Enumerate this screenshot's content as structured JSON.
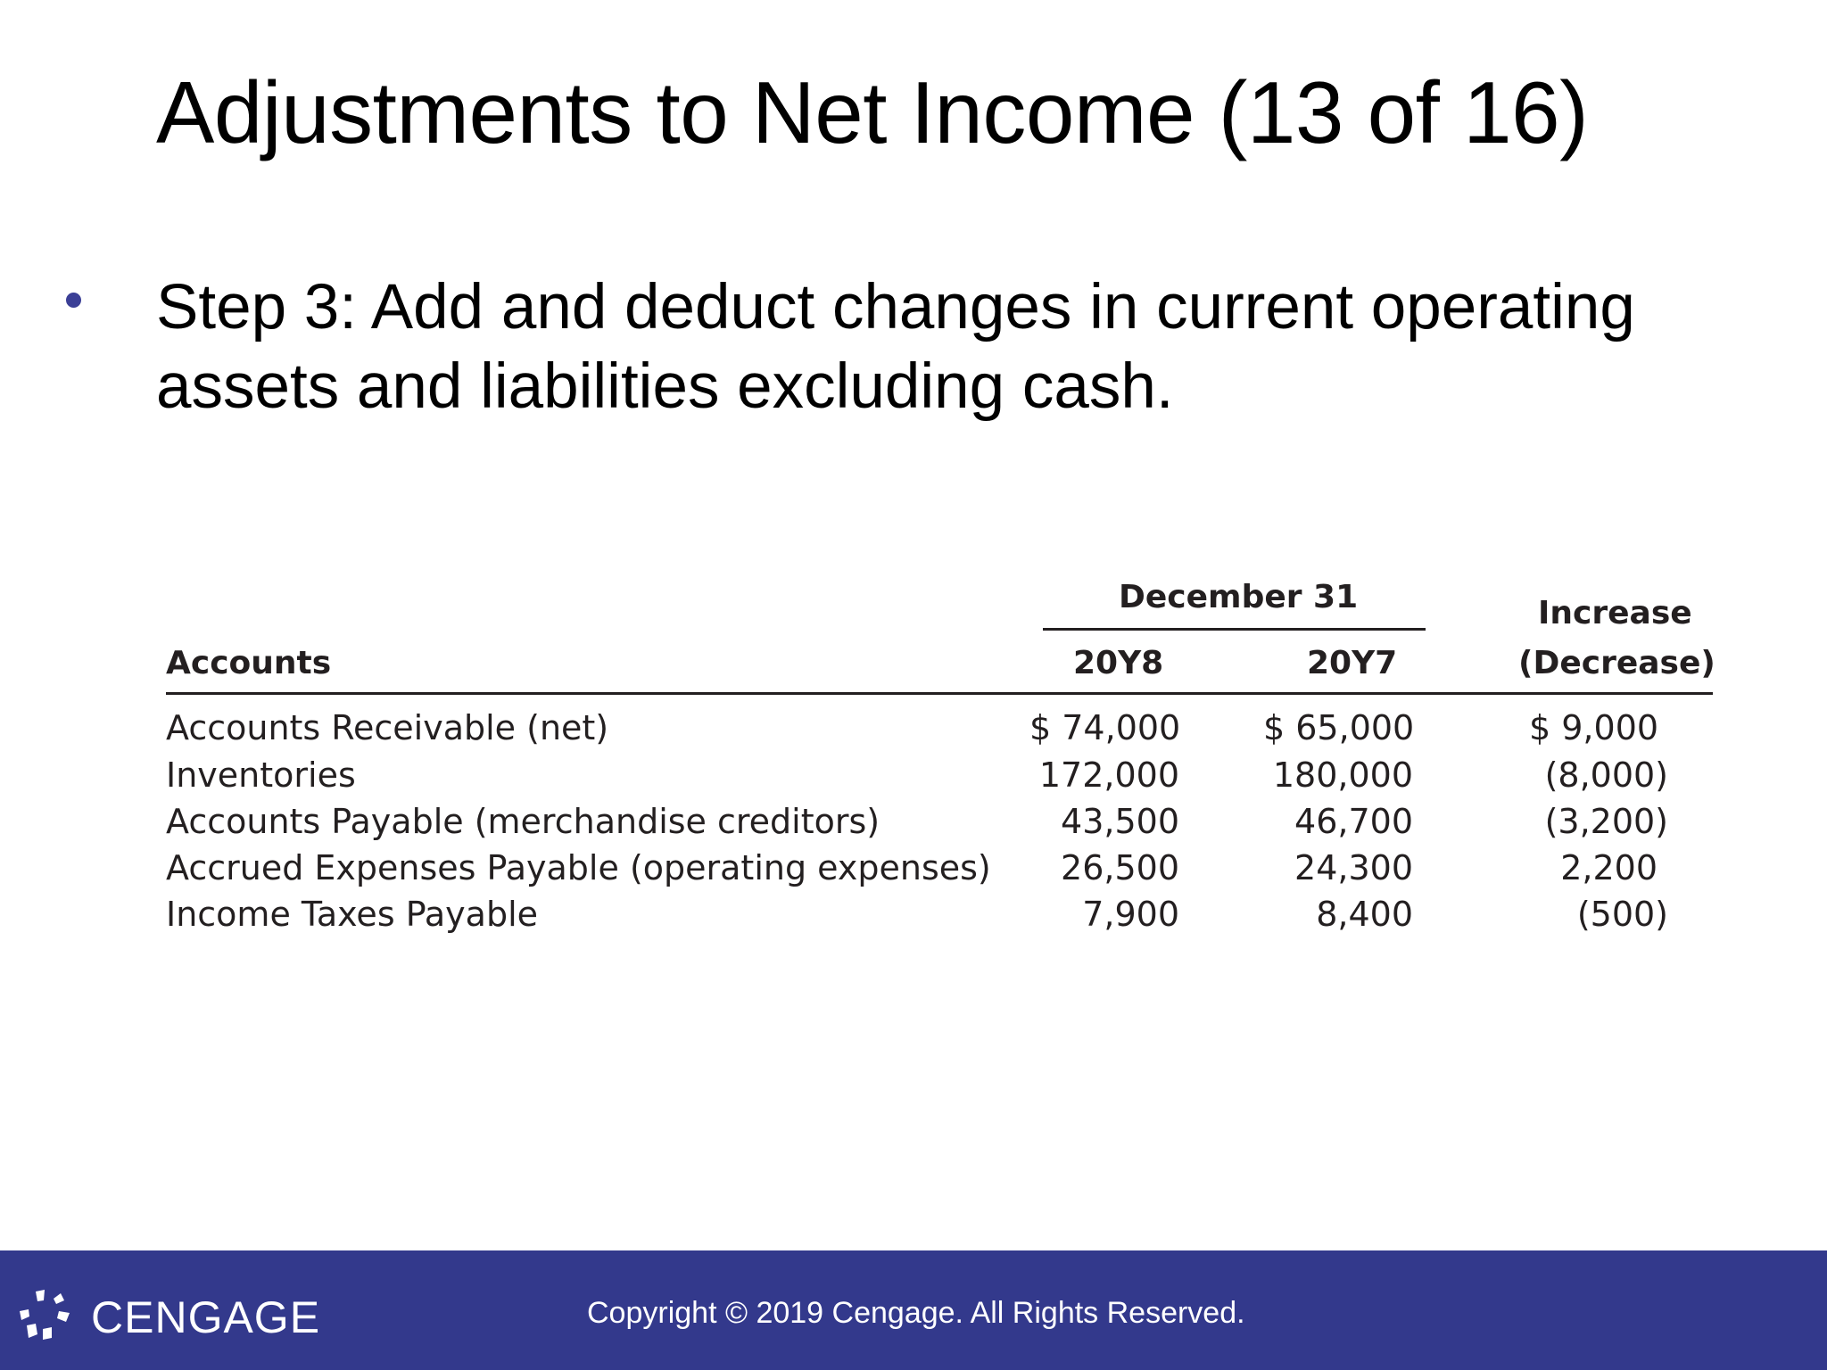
{
  "slide": {
    "title": "Adjustments to Net Income (13 of 16)",
    "bullet": "Step 3: Add and deduct changes in current operating assets and liabilities excluding cash."
  },
  "table": {
    "group_header": "December 31",
    "headers": {
      "accounts": "Accounts",
      "y1": "20Y8",
      "y2": "20Y7",
      "change_line1": "Increase",
      "change_line2": "(Decrease)"
    },
    "rows": [
      {
        "account": "Accounts Receivable (net)",
        "y1": "$  74,000",
        "y2": "$  65,000",
        "change": "$  9,000"
      },
      {
        "account": "Inventories",
        "y1": "172,000",
        "y2": "180,000",
        "change": "(8,000)"
      },
      {
        "account": "Accounts Payable (merchandise creditors)",
        "y1": "43,500",
        "y2": "46,700",
        "change": "(3,200)"
      },
      {
        "account": "Accrued Expenses Payable (operating expenses)",
        "y1": "26,500",
        "y2": "24,300",
        "change": "2,200"
      },
      {
        "account": "Income Taxes Payable",
        "y1": "7,900",
        "y2": "8,400",
        "change": "(500)"
      }
    ]
  },
  "footer": {
    "brand": "CENGAGE",
    "logo_icon": "cengage-logo-icon",
    "copyright": "Copyright © 2019 Cengage. All Rights Reserved.",
    "background_color": "#33398c"
  }
}
